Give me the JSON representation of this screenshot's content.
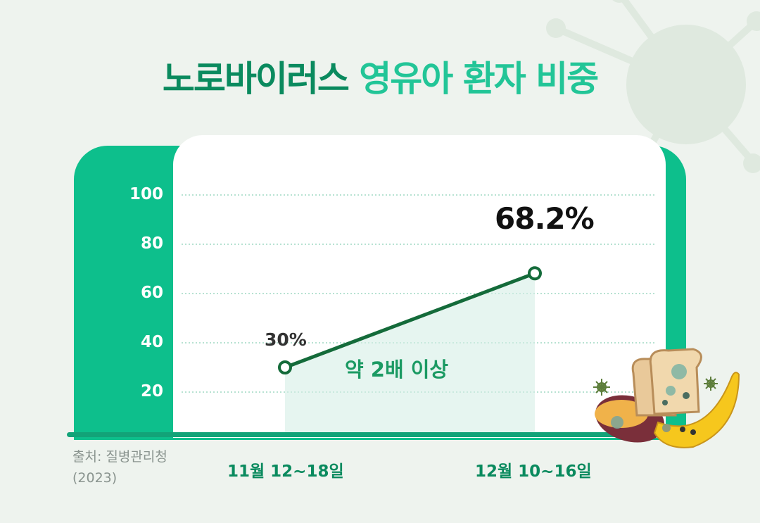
{
  "title": {
    "part1": "노로바이러스",
    "part2": "영유아 환자 비중"
  },
  "chart_data": {
    "type": "line",
    "title": "노로바이러스 영유아 환자 비중",
    "categories": [
      "11월 12~18일",
      "12월 10~16일"
    ],
    "values": [
      30,
      68.2
    ],
    "data_labels": [
      "30%",
      "68.2%"
    ],
    "yticks": [
      "100",
      "80",
      "60",
      "40",
      "20"
    ],
    "ylim": [
      0,
      100
    ],
    "grid": "dotted horizontal",
    "annotation": "약 2배 이상"
  },
  "source": {
    "line1": "출처: 질병관리청",
    "line2": "(2023)"
  },
  "colors": {
    "line": "#146b3a",
    "frame": "#0dbf8c",
    "title_dark": "#0a8a5e",
    "title_light": "#22c597",
    "annotation": "#1b9a63"
  }
}
